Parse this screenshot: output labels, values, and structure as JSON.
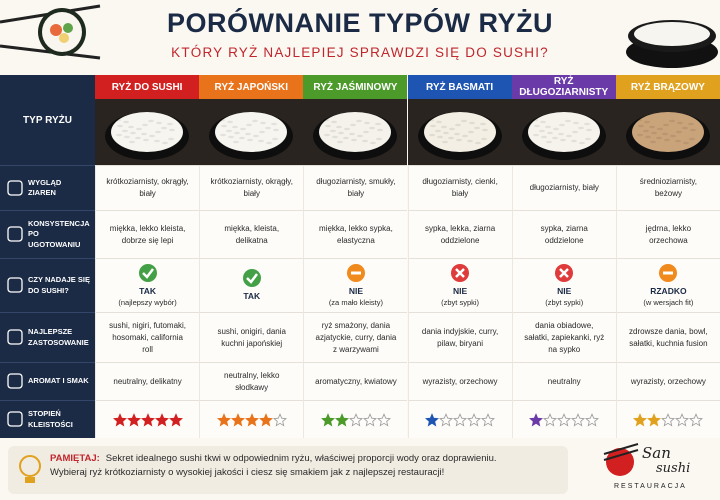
{
  "header": {
    "title": "PORÓWNANIE TYPÓW RYŻU",
    "subtitle": "KTÓRY RYŻ NAJLEPIEJ SPRAWDZI SIĘ DO SUSHI?"
  },
  "table": {
    "corner": "TYP RYŻU",
    "columns": [
      {
        "name": "RYŻ DO SUSHI",
        "color": "#d21f1f",
        "rice": "#f7f5ef"
      },
      {
        "name": "RYŻ JAPOŃSKI",
        "color": "#e8731a",
        "rice": "#f7f5ef"
      },
      {
        "name": "RYŻ JAŚMINOWY",
        "color": "#4b9a2a",
        "rice": "#f4f2ea"
      },
      {
        "name": "RYŻ BASMATI",
        "color": "#1e55b3",
        "rice": "#f3efe4"
      },
      {
        "name": "RYŻ DŁUGOZIARNISTY",
        "color": "#6a3aa8",
        "rice": "#f5f3ec"
      },
      {
        "name": "RYŻ BRĄZOWY",
        "color": "#e0a11f",
        "rice": "#c9a37a"
      }
    ],
    "rows": [
      {
        "label": "WYGLĄD ZIAREN",
        "cells": [
          "krótkoziarnisty, okrągły, biały",
          "krótkoziarnisty, okrągły, biały",
          "długoziarnisty, smukły, biały",
          "długoziarnisty, cienki, biały",
          "długoziarnisty, biały",
          "średnioziarnisty, beżowy"
        ]
      },
      {
        "label": "KONSYSTENCJA PO UGOTOWANIU",
        "cells": [
          "miękka, lekko kleista, dobrze się lepi",
          "miękka, kleista, delikatna",
          "miękka, lekko sypka, elastyczna",
          "sypka, lekka, ziarna oddzielone",
          "sypka, ziarna oddzielone",
          "jędrna, lekko orzechowa"
        ]
      },
      {
        "label": "CZY NADAJE SIĘ DO SUSHI?",
        "cells": [
          {
            "verdict": "TAK",
            "note": "(najlepszy wybór)",
            "icon": "yes"
          },
          {
            "verdict": "TAK",
            "icon": "yes"
          },
          {
            "verdict": "NIE",
            "note": "(za mało kleisty)",
            "icon": "partial"
          },
          {
            "verdict": "NIE",
            "note": "(zbyt sypki)",
            "icon": "no"
          },
          {
            "verdict": "NIE",
            "note": "(zbyt sypki)",
            "icon": "no"
          },
          {
            "verdict": "RZADKO",
            "note": "(w wersjach fit)",
            "icon": "partial"
          }
        ]
      },
      {
        "label": "NAJLEPSZE ZASTOSOWANIE",
        "cells": [
          "sushi, nigiri, futomaki, hosomaki, california roll",
          "sushi, onigiri, dania kuchni japońskiej",
          "ryż smażony, dania azjatyckie, curry, dania z warzywami",
          "dania indyjskie, curry, pilaw, biryani",
          "dania obiadowe, sałatki, zapiekanki, ryż na sypko",
          "zdrowsze dania, bowl, sałatki, kuchnia fusion"
        ]
      },
      {
        "label": "AROMAT I SMAK",
        "cells": [
          "neutralny, delikatny",
          "neutralny, lekko słodkawy",
          "aromatyczny, kwiatowy",
          "wyrazisty, orzechowy",
          "neutralny",
          "wyrazisty, orzechowy"
        ]
      },
      {
        "label": "STOPIEŃ KLEISTOŚCI",
        "ratings": [
          5,
          4,
          2,
          1,
          1,
          2
        ],
        "rating_max": 5
      }
    ]
  },
  "footer": {
    "lead": "PAMIĘTAJ:",
    "text": "Sekret idealnego sushi tkwi w odpowiednim ryżu, właściwej proporcji wody oraz doprawieniu. Wybieraj ryż krótkoziarnisty o wysokiej jakości i ciesz się smakiem jak z najlepszej restauracji!"
  },
  "logo": {
    "line1": "San",
    "line2": "sushi",
    "tagline": "RESTAURACJA"
  }
}
